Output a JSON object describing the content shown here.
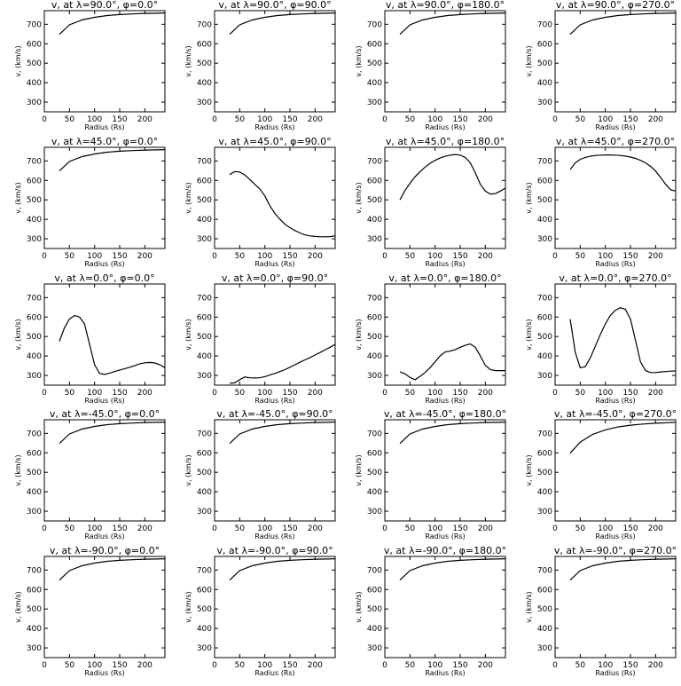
{
  "chart_data": [
    {
      "type": "line",
      "title": "v, at λ=90.0°, φ=0.0°",
      "xlabel": "Radius (Rs)",
      "ylabel": "v, (km/s)",
      "xlim": [
        0,
        240
      ],
      "ylim": [
        250,
        770
      ],
      "xticks": [
        0,
        50,
        100,
        150,
        200
      ],
      "yticks": [
        300,
        400,
        500,
        600,
        700
      ],
      "x": [
        30,
        50,
        75,
        100,
        125,
        150,
        175,
        200,
        225,
        240
      ],
      "y": [
        648,
        697,
        722,
        736,
        745,
        750,
        753,
        756,
        757,
        758
      ]
    },
    {
      "type": "line",
      "title": "v, at λ=90.0°, φ=90.0°",
      "xlabel": "Radius (Rs)",
      "ylabel": "v, (km/s)",
      "xlim": [
        0,
        240
      ],
      "ylim": [
        250,
        770
      ],
      "xticks": [
        0,
        50,
        100,
        150,
        200
      ],
      "yticks": [
        300,
        400,
        500,
        600,
        700
      ],
      "x": [
        30,
        50,
        75,
        100,
        125,
        150,
        175,
        200,
        225,
        240
      ],
      "y": [
        648,
        697,
        722,
        736,
        745,
        750,
        753,
        756,
        757,
        758
      ]
    },
    {
      "type": "line",
      "title": "v, at λ=90.0°, φ=180.0°",
      "xlabel": "Radius (Rs)",
      "ylabel": "v, (km/s)",
      "xlim": [
        0,
        240
      ],
      "ylim": [
        250,
        770
      ],
      "xticks": [
        0,
        50,
        100,
        150,
        200
      ],
      "yticks": [
        300,
        400,
        500,
        600,
        700
      ],
      "x": [
        30,
        50,
        75,
        100,
        125,
        150,
        175,
        200,
        225,
        240
      ],
      "y": [
        648,
        697,
        722,
        736,
        745,
        750,
        753,
        756,
        757,
        758
      ]
    },
    {
      "type": "line",
      "title": "v, at λ=90.0°, φ=270.0°",
      "xlabel": "Radius (Rs)",
      "ylabel": "v, (km/s)",
      "xlim": [
        0,
        240
      ],
      "ylim": [
        250,
        770
      ],
      "xticks": [
        0,
        50,
        100,
        150,
        200
      ],
      "yticks": [
        300,
        400,
        500,
        600,
        700
      ],
      "x": [
        30,
        50,
        75,
        100,
        125,
        150,
        175,
        200,
        225,
        240
      ],
      "y": [
        648,
        697,
        722,
        736,
        745,
        750,
        753,
        756,
        757,
        758
      ]
    },
    {
      "type": "line",
      "title": "v, at λ=45.0°, φ=0.0°",
      "xlabel": "Radius (Rs)",
      "ylabel": "v, (km/s)",
      "xlim": [
        0,
        240
      ],
      "ylim": [
        250,
        770
      ],
      "xticks": [
        0,
        50,
        100,
        150,
        200
      ],
      "yticks": [
        300,
        400,
        500,
        600,
        700
      ],
      "x": [
        30,
        50,
        75,
        100,
        125,
        150,
        175,
        200,
        225,
        240
      ],
      "y": [
        648,
        697,
        722,
        736,
        745,
        750,
        753,
        756,
        757,
        758
      ]
    },
    {
      "type": "line",
      "title": "v, at λ=45.0°, φ=90.0°",
      "xlabel": "Radius (Rs)",
      "ylabel": "v, (km/s)",
      "xlim": [
        0,
        240
      ],
      "ylim": [
        250,
        770
      ],
      "xticks": [
        0,
        50,
        100,
        150,
        200
      ],
      "yticks": [
        300,
        400,
        500,
        600,
        700
      ],
      "x": [
        30,
        40,
        50,
        60,
        70,
        80,
        90,
        100,
        110,
        120,
        130,
        140,
        150,
        160,
        170,
        180,
        190,
        200,
        210,
        220,
        230,
        240
      ],
      "y": [
        630,
        645,
        643,
        628,
        605,
        580,
        556,
        520,
        470,
        430,
        400,
        375,
        357,
        342,
        330,
        320,
        315,
        312,
        310,
        310,
        311,
        315
      ]
    },
    {
      "type": "line",
      "title": "v, at λ=45.0°, φ=180.0°",
      "xlabel": "Radius (Rs)",
      "ylabel": "v, (km/s)",
      "xlim": [
        0,
        240
      ],
      "ylim": [
        250,
        770
      ],
      "xticks": [
        0,
        50,
        100,
        150,
        200
      ],
      "yticks": [
        300,
        400,
        500,
        600,
        700
      ],
      "x": [
        30,
        40,
        50,
        60,
        70,
        80,
        90,
        100,
        110,
        120,
        130,
        140,
        150,
        160,
        170,
        180,
        190,
        200,
        210,
        220,
        230,
        240
      ],
      "y": [
        500,
        548,
        585,
        618,
        645,
        668,
        688,
        703,
        715,
        724,
        730,
        733,
        730,
        718,
        690,
        640,
        580,
        545,
        530,
        532,
        545,
        560
      ]
    },
    {
      "type": "line",
      "title": "v, at λ=45.0°, φ=270.0°",
      "xlabel": "Radius (Rs)",
      "ylabel": "v, (km/s)",
      "xlim": [
        0,
        240
      ],
      "ylim": [
        250,
        770
      ],
      "xticks": [
        0,
        50,
        100,
        150,
        200
      ],
      "yticks": [
        300,
        400,
        500,
        600,
        700
      ],
      "x": [
        30,
        40,
        50,
        60,
        70,
        80,
        90,
        100,
        110,
        120,
        130,
        140,
        150,
        160,
        170,
        180,
        190,
        200,
        210,
        220,
        230,
        240
      ],
      "y": [
        655,
        690,
        708,
        718,
        724,
        728,
        730,
        731,
        731,
        730,
        728,
        725,
        720,
        713,
        703,
        690,
        672,
        648,
        615,
        580,
        552,
        545
      ]
    },
    {
      "type": "line",
      "title": "v, at λ=0.0°, φ=0.0°",
      "xlabel": "Radius (Rs)",
      "ylabel": "v, (km/s)",
      "xlim": [
        0,
        240
      ],
      "ylim": [
        250,
        770
      ],
      "xticks": [
        0,
        50,
        100,
        150,
        200
      ],
      "yticks": [
        300,
        400,
        500,
        600,
        700
      ],
      "x": [
        30,
        40,
        50,
        60,
        70,
        80,
        90,
        100,
        110,
        120,
        130,
        140,
        150,
        160,
        170,
        180,
        190,
        200,
        210,
        220,
        230,
        240
      ],
      "y": [
        475,
        545,
        590,
        608,
        600,
        565,
        460,
        355,
        310,
        305,
        312,
        320,
        328,
        335,
        342,
        350,
        360,
        365,
        367,
        364,
        355,
        340
      ]
    },
    {
      "type": "line",
      "title": "v, at λ=0.0°, φ=90.0°",
      "xlabel": "Radius (Rs)",
      "ylabel": "v, (km/s)",
      "xlim": [
        0,
        240
      ],
      "ylim": [
        250,
        770
      ],
      "xticks": [
        0,
        50,
        100,
        150,
        200
      ],
      "yticks": [
        300,
        400,
        500,
        600,
        700
      ],
      "x": [
        30,
        40,
        50,
        60,
        70,
        80,
        90,
        100,
        110,
        120,
        130,
        140,
        150,
        160,
        170,
        180,
        190,
        200,
        210,
        220,
        230,
        240
      ],
      "y": [
        260,
        262,
        278,
        292,
        288,
        287,
        288,
        294,
        302,
        310,
        320,
        330,
        342,
        355,
        368,
        380,
        392,
        405,
        418,
        432,
        445,
        460
      ]
    },
    {
      "type": "line",
      "title": "v, at λ=0.0°, φ=180.0°",
      "xlabel": "Radius (Rs)",
      "ylabel": "v, (km/s)",
      "xlim": [
        0,
        240
      ],
      "ylim": [
        250,
        770
      ],
      "xticks": [
        0,
        50,
        100,
        150,
        200
      ],
      "yticks": [
        300,
        400,
        500,
        600,
        700
      ],
      "x": [
        30,
        40,
        50,
        60,
        70,
        80,
        90,
        100,
        110,
        120,
        130,
        140,
        150,
        160,
        170,
        180,
        190,
        200,
        210,
        220,
        230,
        240
      ],
      "y": [
        318,
        308,
        290,
        278,
        295,
        315,
        340,
        370,
        400,
        420,
        425,
        432,
        445,
        455,
        462,
        445,
        400,
        352,
        330,
        325,
        325,
        325
      ]
    },
    {
      "type": "line",
      "title": "v, at λ=0.0°, φ=270.0°",
      "xlabel": "Radius (Rs)",
      "ylabel": "v, (km/s)",
      "xlim": [
        0,
        240
      ],
      "ylim": [
        250,
        770
      ],
      "xticks": [
        0,
        50,
        100,
        150,
        200
      ],
      "yticks": [
        300,
        400,
        500,
        600,
        700
      ],
      "x": [
        30,
        40,
        50,
        60,
        70,
        80,
        90,
        100,
        110,
        120,
        130,
        140,
        150,
        160,
        170,
        180,
        190,
        200,
        210,
        220,
        230,
        240
      ],
      "y": [
        590,
        420,
        340,
        345,
        390,
        450,
        510,
        565,
        608,
        635,
        648,
        640,
        590,
        480,
        370,
        325,
        315,
        315,
        318,
        320,
        322,
        323
      ]
    },
    {
      "type": "line",
      "title": "v, at λ=-45.0°, φ=0.0°",
      "xlabel": "Radius (Rs)",
      "ylabel": "v, (km/s)",
      "xlim": [
        0,
        240
      ],
      "ylim": [
        250,
        770
      ],
      "xticks": [
        0,
        50,
        100,
        150,
        200
      ],
      "yticks": [
        300,
        400,
        500,
        600,
        700
      ],
      "x": [
        30,
        50,
        75,
        100,
        125,
        150,
        175,
        200,
        225,
        240
      ],
      "y": [
        648,
        697,
        722,
        736,
        745,
        750,
        753,
        756,
        757,
        758
      ]
    },
    {
      "type": "line",
      "title": "v, at λ=-45.0°, φ=90.0°",
      "xlabel": "Radius (Rs)",
      "ylabel": "v, (km/s)",
      "xlim": [
        0,
        240
      ],
      "ylim": [
        250,
        770
      ],
      "xticks": [
        0,
        50,
        100,
        150,
        200
      ],
      "yticks": [
        300,
        400,
        500,
        600,
        700
      ],
      "x": [
        30,
        50,
        75,
        100,
        125,
        150,
        175,
        200,
        225,
        240
      ],
      "y": [
        648,
        697,
        722,
        736,
        745,
        750,
        753,
        756,
        757,
        758
      ]
    },
    {
      "type": "line",
      "title": "v, at λ=-45.0°, φ=180.0°",
      "xlabel": "Radius (Rs)",
      "ylabel": "v, (km/s)",
      "xlim": [
        0,
        240
      ],
      "ylim": [
        250,
        770
      ],
      "xticks": [
        0,
        50,
        100,
        150,
        200
      ],
      "yticks": [
        300,
        400,
        500,
        600,
        700
      ],
      "x": [
        30,
        50,
        75,
        100,
        125,
        150,
        175,
        200,
        225,
        240
      ],
      "y": [
        648,
        697,
        722,
        736,
        745,
        750,
        753,
        756,
        757,
        758
      ]
    },
    {
      "type": "line",
      "title": "v, at λ=-45.0°, φ=270.0°",
      "xlabel": "Radius (Rs)",
      "ylabel": "v, (km/s)",
      "xlim": [
        0,
        240
      ],
      "ylim": [
        250,
        770
      ],
      "xticks": [
        0,
        50,
        100,
        150,
        200
      ],
      "yticks": [
        300,
        400,
        500,
        600,
        700
      ],
      "x": [
        30,
        50,
        75,
        100,
        125,
        150,
        175,
        200,
        225,
        240
      ],
      "y": [
        598,
        655,
        695,
        718,
        733,
        742,
        748,
        752,
        755,
        757
      ]
    },
    {
      "type": "line",
      "title": "v, at λ=-90.0°, φ=0.0°",
      "xlabel": "Radius (Rs)",
      "ylabel": "v, (km/s)",
      "xlim": [
        0,
        240
      ],
      "ylim": [
        250,
        770
      ],
      "xticks": [
        0,
        50,
        100,
        150,
        200
      ],
      "yticks": [
        300,
        400,
        500,
        600,
        700
      ],
      "x": [
        30,
        50,
        75,
        100,
        125,
        150,
        175,
        200,
        225,
        240
      ],
      "y": [
        648,
        697,
        722,
        736,
        745,
        750,
        753,
        756,
        757,
        758
      ]
    },
    {
      "type": "line",
      "title": "v, at λ=-90.0°, φ=90.0°",
      "xlabel": "Radius (Rs)",
      "ylabel": "v, (km/s)",
      "xlim": [
        0,
        240
      ],
      "ylim": [
        250,
        770
      ],
      "xticks": [
        0,
        50,
        100,
        150,
        200
      ],
      "yticks": [
        300,
        400,
        500,
        600,
        700
      ],
      "x": [
        30,
        50,
        75,
        100,
        125,
        150,
        175,
        200,
        225,
        240
      ],
      "y": [
        648,
        697,
        722,
        736,
        745,
        750,
        753,
        756,
        757,
        758
      ]
    },
    {
      "type": "line",
      "title": "v, at λ=-90.0°, φ=180.0°",
      "xlabel": "Radius (Rs)",
      "ylabel": "v, (km/s)",
      "xlim": [
        0,
        240
      ],
      "ylim": [
        250,
        770
      ],
      "xticks": [
        0,
        50,
        100,
        150,
        200
      ],
      "yticks": [
        300,
        400,
        500,
        600,
        700
      ],
      "x": [
        30,
        50,
        75,
        100,
        125,
        150,
        175,
        200,
        225,
        240
      ],
      "y": [
        648,
        697,
        722,
        736,
        745,
        750,
        753,
        756,
        757,
        758
      ]
    },
    {
      "type": "line",
      "title": "v, at λ=-90.0°, φ=270.0°",
      "xlabel": "Radius (Rs)",
      "ylabel": "v, (km/s)",
      "xlim": [
        0,
        240
      ],
      "ylim": [
        250,
        770
      ],
      "xticks": [
        0,
        50,
        100,
        150,
        200
      ],
      "yticks": [
        300,
        400,
        500,
        600,
        700
      ],
      "x": [
        30,
        50,
        75,
        100,
        125,
        150,
        175,
        200,
        225,
        240
      ],
      "y": [
        648,
        697,
        722,
        736,
        745,
        750,
        753,
        756,
        757,
        758
      ]
    }
  ]
}
